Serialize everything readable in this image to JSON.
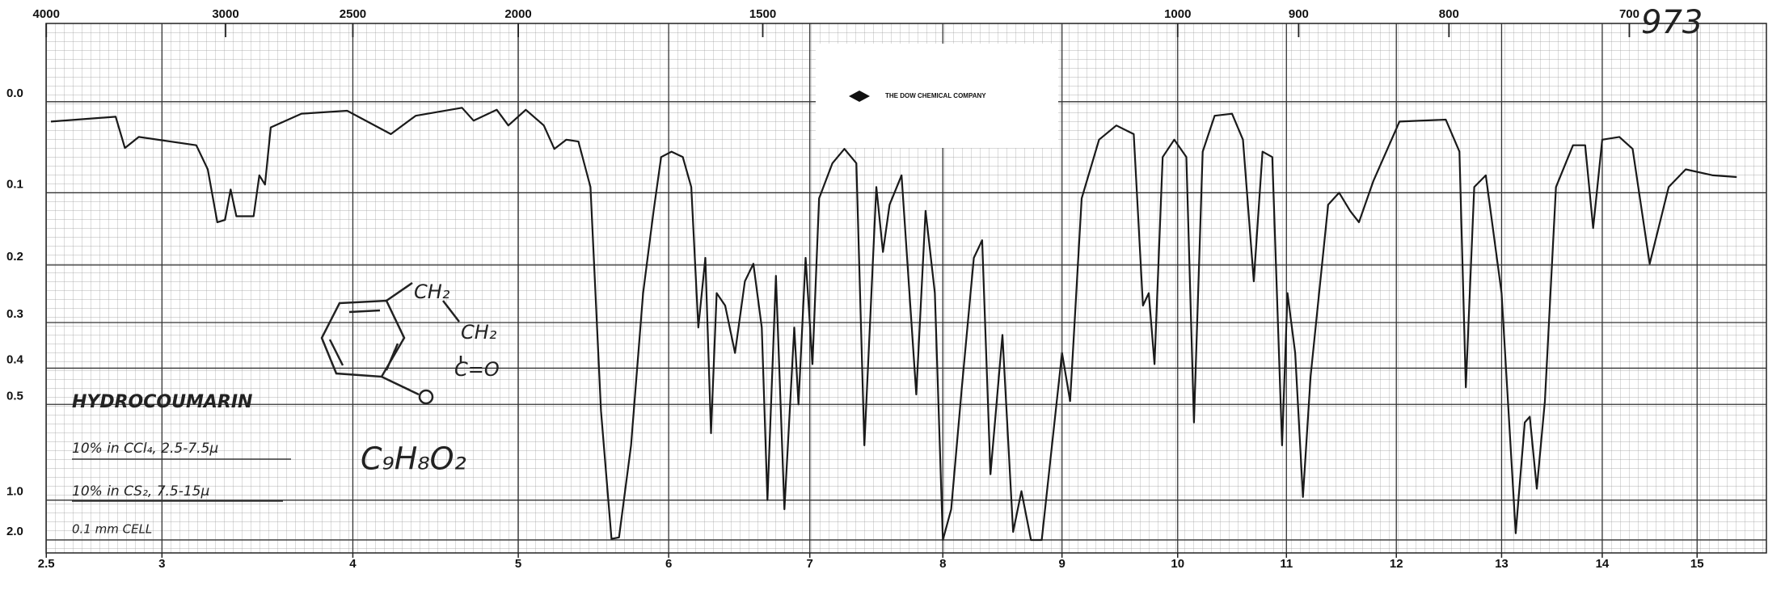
{
  "chart_data": {
    "type": "line",
    "stamp": "973",
    "company": "THE DOW CHEMICAL COMPANY",
    "compound": "HYDROCOUMARIN",
    "conditions": [
      "10% in CCl₄, 2.5-7.5µ",
      "10% in CS₂, 7.5-15µ",
      "0.1 mm CELL"
    ],
    "formula": "C₉H₈O₂",
    "structure_labels": [
      "CH₂",
      "CH₂",
      "C=O",
      "O"
    ],
    "yscale": "absorbance",
    "color": "#1a1a1a",
    "grid": true,
    "xlim": [
      2.5,
      15.7
    ],
    "ylim": [
      2.0,
      -0.07
    ],
    "xticks": [
      2.5,
      3,
      4,
      5,
      6,
      7,
      8,
      9,
      10,
      11,
      12,
      13,
      14,
      15
    ],
    "x2ticks": [
      4000,
      3000,
      2500,
      2000,
      1500,
      1000,
      900,
      800,
      700
    ],
    "yticks": [
      {
        "value": 0,
        "label": "0.0"
      },
      0.1,
      0.2,
      0.3,
      0.4,
      0.5,
      {
        "value": 1,
        "label": "1.0"
      },
      {
        "value": 2,
        "label": "2.0"
      }
    ],
    "x": [
      2.52,
      2.8,
      2.84,
      2.9,
      3.18,
      3.24,
      3.29,
      3.33,
      3.36,
      3.39,
      3.48,
      3.51,
      3.54,
      3.57,
      3.73,
      3.97,
      4.23,
      4.38,
      4.66,
      4.73,
      4.87,
      4.94,
      5.05,
      5.17,
      5.24,
      5.32,
      5.4,
      5.48,
      5.55,
      5.62,
      5.67,
      5.75,
      5.83,
      5.9,
      5.95,
      6.02,
      6.1,
      6.16,
      6.21,
      6.26,
      6.3,
      6.34,
      6.4,
      6.47,
      6.54,
      6.6,
      6.66,
      6.7,
      6.76,
      6.82,
      6.89,
      6.92,
      6.97,
      7.02,
      7.07,
      7.17,
      7.26,
      7.35,
      7.41,
      7.5,
      7.55,
      7.6,
      7.69,
      7.8,
      7.87,
      7.94,
      8.0,
      8.07,
      8.16,
      8.26,
      8.33,
      8.4,
      8.5,
      8.59,
      8.66,
      8.74,
      8.83,
      8.92,
      9.0,
      9.07,
      9.17,
      9.32,
      9.47,
      9.62,
      9.7,
      9.75,
      9.8,
      9.87,
      9.97,
      10.08,
      10.15,
      10.23,
      10.34,
      10.5,
      10.6,
      10.7,
      10.78,
      10.87,
      10.96,
      11.01,
      11.08,
      11.15,
      11.22,
      11.38,
      11.48,
      11.58,
      11.66,
      11.79,
      12.03,
      12.47,
      12.6,
      12.66,
      12.74,
      12.85,
      13.0,
      13.14,
      13.23,
      13.28,
      13.35,
      13.43,
      13.54,
      13.71,
      13.83,
      13.91,
      14.0,
      14.18,
      14.32,
      14.5,
      14.7,
      14.88,
      15.16,
      15.4
    ],
    "values": [
      0.02,
      0.015,
      0.048,
      0.036,
      0.045,
      0.072,
      0.138,
      0.135,
      0.096,
      0.13,
      0.13,
      0.079,
      0.09,
      0.026,
      0.012,
      0.009,
      0.033,
      0.014,
      0.006,
      0.019,
      0.008,
      0.024,
      0.008,
      0.024,
      0.049,
      0.039,
      0.041,
      0.093,
      0.52,
      1.9,
      1.8,
      0.65,
      0.246,
      0.123,
      0.058,
      0.052,
      0.058,
      0.093,
      0.31,
      0.189,
      0.6,
      0.246,
      0.268,
      0.364,
      0.226,
      0.198,
      0.31,
      1.0,
      0.217,
      1.1,
      0.31,
      0.5,
      0.189,
      0.39,
      0.107,
      0.065,
      0.049,
      0.065,
      0.65,
      0.093,
      0.18,
      0.115,
      0.079,
      0.47,
      0.123,
      0.246,
      2.0,
      1.1,
      0.45,
      0.189,
      0.163,
      0.8,
      0.325,
      1.55,
      0.92,
      2.0,
      2.0,
      0.63,
      0.364,
      0.49,
      0.107,
      0.039,
      0.024,
      0.033,
      0.268,
      0.246,
      0.39,
      0.058,
      0.039,
      0.058,
      0.56,
      0.052,
      0.014,
      0.012,
      0.039,
      0.226,
      0.052,
      0.058,
      0.65,
      0.246,
      0.364,
      0.97,
      0.42,
      0.115,
      0.1,
      0.123,
      0.138,
      0.086,
      0.02,
      0.018,
      0.052,
      0.45,
      0.093,
      0.079,
      0.246,
      1.6,
      0.56,
      0.54,
      0.9,
      0.49,
      0.093,
      0.045,
      0.045,
      0.146,
      0.039,
      0.036,
      0.049,
      0.198,
      0.093,
      0.072,
      0.079,
      0.081
    ]
  }
}
